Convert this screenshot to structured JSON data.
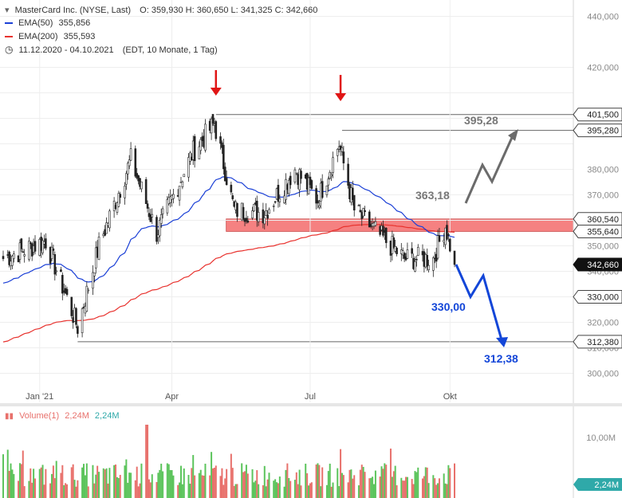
{
  "legend": {
    "instrument": "MasterCard Inc. (NYSE, Last)",
    "ohlc": "O: 359,930  H: 360,650  L: 341,325  C: 342,660",
    "ema50_label": "EMA(50)",
    "ema50_value": "355,856",
    "ema200_label": "EMA(200)",
    "ema200_value": "355,593",
    "range": "11.12.2020 - 04.10.2021",
    "range_note": "(EDT, 10 Monate, 1 Tag)",
    "volume_label": "Volume(1)",
    "volume_value_1": "2,24M",
    "volume_value_2": "2,24M"
  },
  "colors": {
    "ema50": "#1a3fd6",
    "ema200": "#e8322e",
    "up": "#5cc45c",
    "down": "#e8716c",
    "zone": "#f47373",
    "projection_up": "#6b6b6b",
    "projection_down": "#1346d8",
    "arrow": "#e01515"
  },
  "chart_data": {
    "type": "line",
    "y_ticks": [
      "440,000",
      "420,000",
      "380,000",
      "370,000",
      "350,000",
      "340,000",
      "320,000",
      "310,000",
      "300,000"
    ],
    "x_ticks": [
      "Jan '21",
      "Apr",
      "Jul",
      "Okt"
    ],
    "price_labels": [
      "401,500",
      "395,280",
      "360,540",
      "355,640",
      "342,660",
      "330,000",
      "312,380"
    ],
    "annotations": {
      "up_target": "395,28",
      "resistance": "363,18",
      "down_target1": "330,00",
      "down_target2": "312,38"
    },
    "levels": {
      "high_line": 401.5,
      "upper_line": 395.28,
      "zone_top": 360.54,
      "zone_bottom": 355.64,
      "support1": 330.0,
      "support2": 312.38,
      "last": 342.66
    },
    "key_closes": [
      {
        "date": "2020-12-11",
        "close": 345
      },
      {
        "date": "2021-01-08",
        "close": 352
      },
      {
        "date": "2021-01-29",
        "close": 318
      },
      {
        "date": "2021-02-12",
        "close": 350
      },
      {
        "date": "2021-03-05",
        "close": 384
      },
      {
        "date": "2021-03-22",
        "close": 355
      },
      {
        "date": "2021-04-15",
        "close": 387
      },
      {
        "date": "2021-04-29",
        "close": 398
      },
      {
        "date": "2021-05-12",
        "close": 364
      },
      {
        "date": "2021-06-01",
        "close": 363
      },
      {
        "date": "2021-06-21",
        "close": 380
      },
      {
        "date": "2021-07-06",
        "close": 368
      },
      {
        "date": "2021-07-20",
        "close": 390
      },
      {
        "date": "2021-07-30",
        "close": 364
      },
      {
        "date": "2021-08-16",
        "close": 354
      },
      {
        "date": "2021-09-01",
        "close": 345
      },
      {
        "date": "2021-09-20",
        "close": 345
      },
      {
        "date": "2021-09-28",
        "close": 358
      },
      {
        "date": "2021-10-04",
        "close": 342.66
      }
    ]
  }
}
